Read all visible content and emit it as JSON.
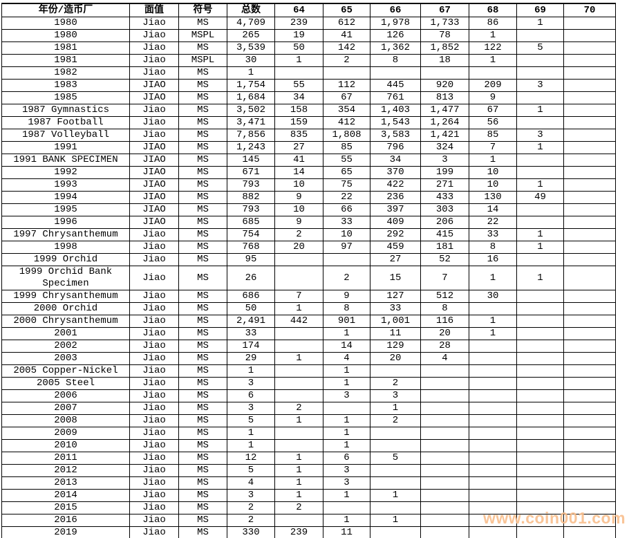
{
  "chart_data": {
    "type": "table",
    "title": "",
    "columns": [
      "年份/造币厂",
      "面值",
      "符号",
      "总数",
      "64",
      "65",
      "66",
      "67",
      "68",
      "69",
      "70"
    ],
    "rows": [
      [
        "1980",
        "Jiao",
        "MS",
        "4,709",
        "239",
        "612",
        "1,978",
        "1,733",
        "86",
        "1",
        ""
      ],
      [
        "1980",
        "Jiao",
        "MSPL",
        "265",
        "19",
        "41",
        "126",
        "78",
        "1",
        "",
        ""
      ],
      [
        "1981",
        "Jiao",
        "MS",
        "3,539",
        "50",
        "142",
        "1,362",
        "1,852",
        "122",
        "5",
        ""
      ],
      [
        "1981",
        "Jiao",
        "MSPL",
        "30",
        "1",
        "2",
        "8",
        "18",
        "1",
        "",
        ""
      ],
      [
        "1982",
        "Jiao",
        "MS",
        "1",
        "",
        "",
        "",
        "",
        "",
        "",
        ""
      ],
      [
        "1983",
        "JIAO",
        "MS",
        "1,754",
        "55",
        "112",
        "445",
        "920",
        "209",
        "3",
        ""
      ],
      [
        "1985",
        "JIAO",
        "MS",
        "1,684",
        "34",
        "67",
        "761",
        "813",
        "9",
        "",
        ""
      ],
      [
        "1987 Gymnastics",
        "Jiao",
        "MS",
        "3,502",
        "158",
        "354",
        "1,403",
        "1,477",
        "67",
        "1",
        ""
      ],
      [
        "1987 Football",
        "Jiao",
        "MS",
        "3,471",
        "159",
        "412",
        "1,543",
        "1,264",
        "56",
        "",
        ""
      ],
      [
        "1987 Volleyball",
        "Jiao",
        "MS",
        "7,856",
        "835",
        "1,808",
        "3,583",
        "1,421",
        "85",
        "3",
        ""
      ],
      [
        "1991",
        "JIAO",
        "MS",
        "1,243",
        "27",
        "85",
        "796",
        "324",
        "7",
        "1",
        ""
      ],
      [
        "1991 BANK SPECIMEN",
        "JIAO",
        "MS",
        "145",
        "41",
        "55",
        "34",
        "3",
        "1",
        "",
        ""
      ],
      [
        "1992",
        "JIAO",
        "MS",
        "671",
        "14",
        "65",
        "370",
        "199",
        "10",
        "",
        ""
      ],
      [
        "1993",
        "JIAO",
        "MS",
        "793",
        "10",
        "75",
        "422",
        "271",
        "10",
        "1",
        ""
      ],
      [
        "1994",
        "JIAO",
        "MS",
        "882",
        "9",
        "22",
        "236",
        "433",
        "130",
        "49",
        ""
      ],
      [
        "1995",
        "JIAO",
        "MS",
        "793",
        "10",
        "66",
        "397",
        "303",
        "14",
        "",
        ""
      ],
      [
        "1996",
        "JIAO",
        "MS",
        "685",
        "9",
        "33",
        "409",
        "206",
        "22",
        "",
        ""
      ],
      [
        "1997 Chrysanthemum",
        "Jiao",
        "MS",
        "754",
        "2",
        "10",
        "292",
        "415",
        "33",
        "1",
        ""
      ],
      [
        "1998",
        "Jiao",
        "MS",
        "768",
        "20",
        "97",
        "459",
        "181",
        "8",
        "1",
        ""
      ],
      [
        "1999 Orchid",
        "Jiao",
        "MS",
        "95",
        "",
        "",
        "27",
        "52",
        "16",
        "",
        ""
      ],
      [
        "1999 Orchid Bank Specimen",
        "Jiao",
        "MS",
        "26",
        "",
        "2",
        "15",
        "7",
        "1",
        "1",
        ""
      ],
      [
        "1999 Chrysanthemum",
        "Jiao",
        "MS",
        "686",
        "7",
        "9",
        "127",
        "512",
        "30",
        "",
        ""
      ],
      [
        "2000 Orchid",
        "Jiao",
        "MS",
        "50",
        "1",
        "8",
        "33",
        "8",
        "",
        "",
        ""
      ],
      [
        "2000 Chrysanthemum",
        "Jiao",
        "MS",
        "2,491",
        "442",
        "901",
        "1,001",
        "116",
        "1",
        "",
        ""
      ],
      [
        "2001",
        "Jiao",
        "MS",
        "33",
        "",
        "1",
        "11",
        "20",
        "1",
        "",
        ""
      ],
      [
        "2002",
        "Jiao",
        "MS",
        "174",
        "",
        "14",
        "129",
        "28",
        "",
        "",
        ""
      ],
      [
        "2003",
        "Jiao",
        "MS",
        "29",
        "1",
        "4",
        "20",
        "4",
        "",
        "",
        ""
      ],
      [
        "2005 Copper-Nickel",
        "Jiao",
        "MS",
        "1",
        "",
        "1",
        "",
        "",
        "",
        "",
        ""
      ],
      [
        "2005 Steel",
        "Jiao",
        "MS",
        "3",
        "",
        "1",
        "2",
        "",
        "",
        "",
        ""
      ],
      [
        "2006",
        "Jiao",
        "MS",
        "6",
        "",
        "3",
        "3",
        "",
        "",
        "",
        ""
      ],
      [
        "2007",
        "Jiao",
        "MS",
        "3",
        "2",
        "",
        "1",
        "",
        "",
        "",
        ""
      ],
      [
        "2008",
        "Jiao",
        "MS",
        "5",
        "1",
        "1",
        "2",
        "",
        "",
        "",
        ""
      ],
      [
        "2009",
        "Jiao",
        "MS",
        "1",
        "",
        "1",
        "",
        "",
        "",
        "",
        ""
      ],
      [
        "2010",
        "Jiao",
        "MS",
        "1",
        "",
        "1",
        "",
        "",
        "",
        "",
        ""
      ],
      [
        "2011",
        "Jiao",
        "MS",
        "12",
        "1",
        "6",
        "5",
        "",
        "",
        "",
        ""
      ],
      [
        "2012",
        "Jiao",
        "MS",
        "5",
        "1",
        "3",
        "",
        "",
        "",
        "",
        ""
      ],
      [
        "2013",
        "Jiao",
        "MS",
        "4",
        "1",
        "3",
        "",
        "",
        "",
        "",
        ""
      ],
      [
        "2014",
        "Jiao",
        "MS",
        "3",
        "1",
        "1",
        "1",
        "",
        "",
        "",
        ""
      ],
      [
        "2015",
        "Jiao",
        "MS",
        "2",
        "2",
        "",
        "",
        "",
        "",
        "",
        ""
      ],
      [
        "2016",
        "Jiao",
        "MS",
        "2",
        "",
        "1",
        "1",
        "",
        "",
        "",
        ""
      ],
      [
        "2019",
        "Jiao",
        "MS",
        "330",
        "239",
        "11",
        "",
        "",
        "",
        "",
        ""
      ]
    ]
  },
  "watermark": {
    "text": "www.coin001.com",
    "color": "#F9BE8C"
  },
  "colors": {
    "grid": "#000000",
    "text": "#000000",
    "background": "#FFFFFF"
  }
}
